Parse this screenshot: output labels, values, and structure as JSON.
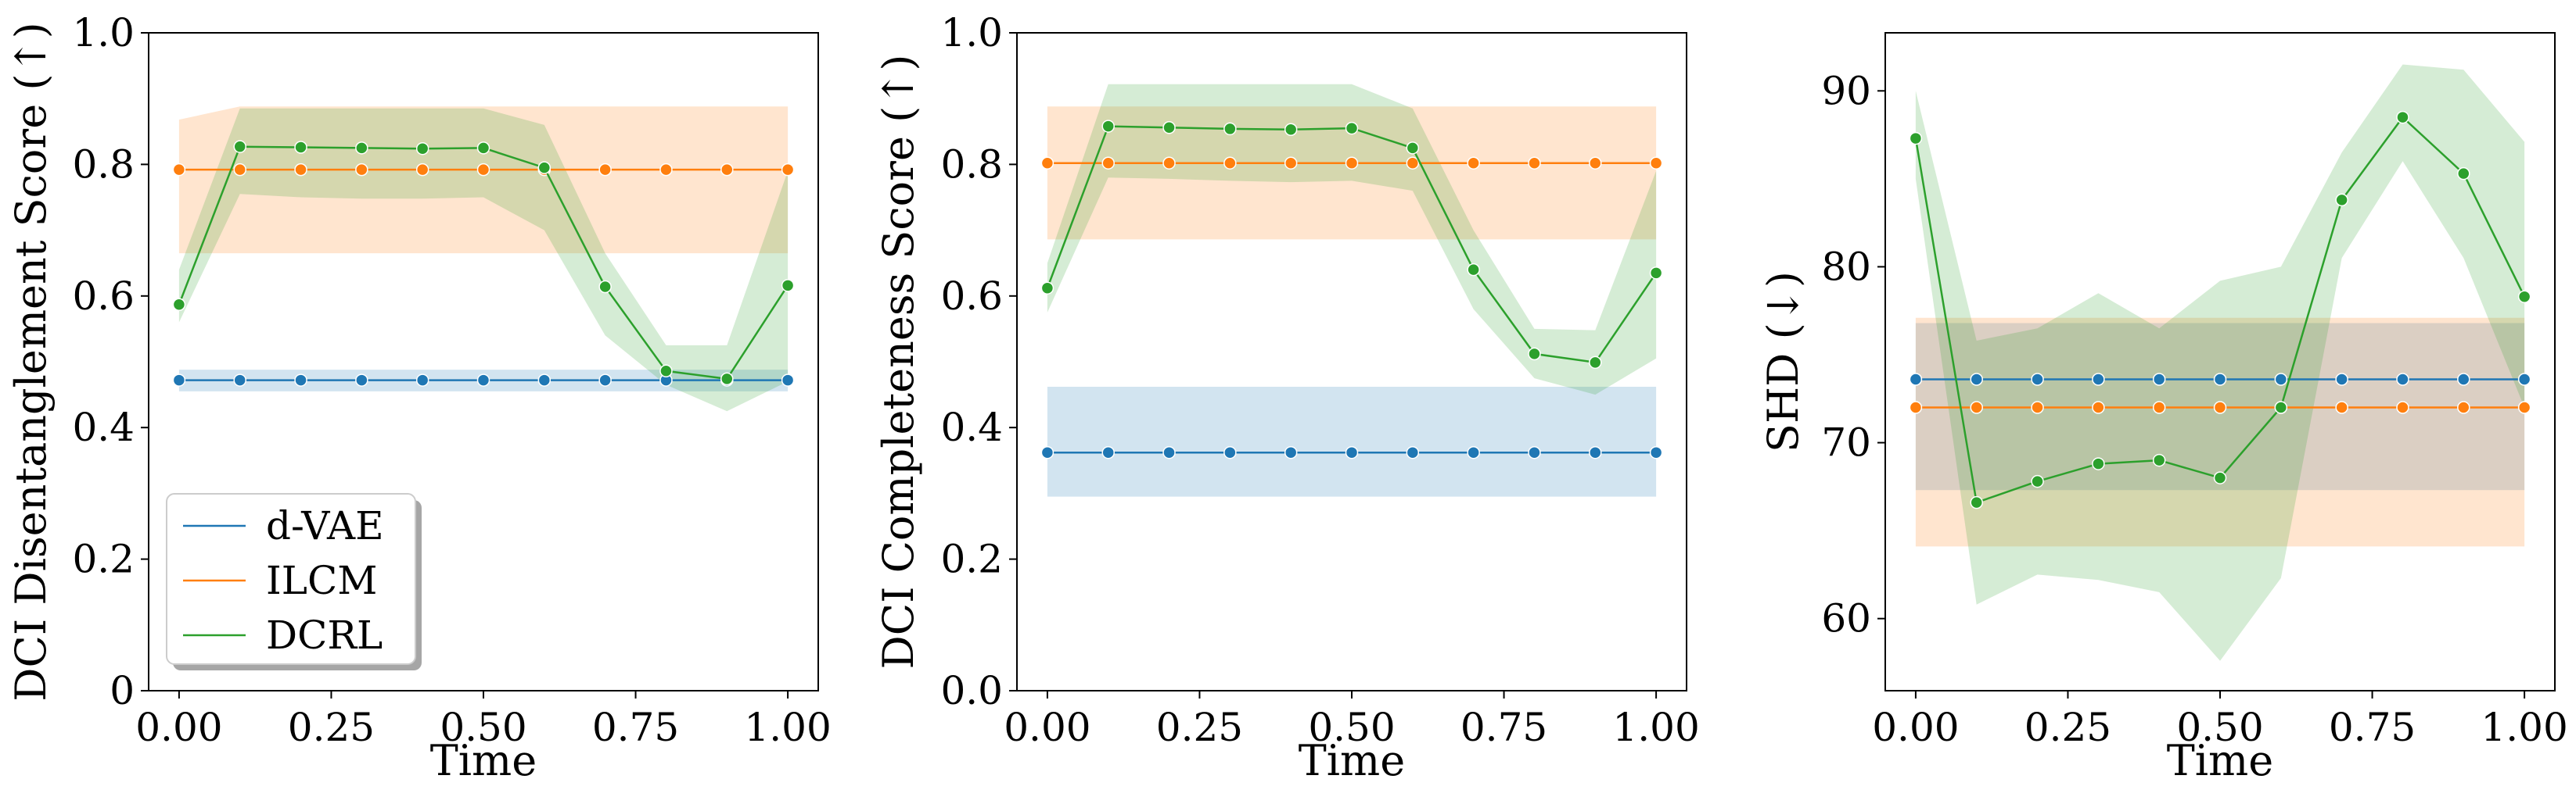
{
  "chart_data": [
    {
      "type": "line",
      "xlabel": "Time",
      "ylabel": "DCI Disentanglement Score (↑)",
      "xlim": [
        -0.05,
        1.05
      ],
      "ylim": [
        0.0,
        1.0
      ],
      "xticks": [
        0.0,
        0.25,
        0.5,
        0.75,
        1.0
      ],
      "xtick_labels": [
        "0.00",
        "0.25",
        "0.50",
        "0.75",
        "1.00"
      ],
      "yticks": [
        0.0,
        0.2,
        0.4,
        0.6,
        0.8,
        1.0
      ],
      "ytick_labels": [
        "0",
        "0.2",
        "0.4",
        "0.6",
        "0.8",
        "1.0"
      ],
      "x": [
        0.0,
        0.1,
        0.2,
        0.3,
        0.4,
        0.5,
        0.6,
        0.7,
        0.8,
        0.9,
        1.0
      ],
      "legend": {
        "position": "bottom-left",
        "entries": [
          "d-VAE",
          "ILCM",
          "DCRL"
        ]
      },
      "series": [
        {
          "name": "d-VAE",
          "color": "#1f77b4",
          "values": [
            0.472,
            0.472,
            0.472,
            0.472,
            0.472,
            0.472,
            0.472,
            0.472,
            0.472,
            0.472,
            0.472
          ],
          "lower": [
            0.455,
            0.455,
            0.455,
            0.455,
            0.455,
            0.455,
            0.455,
            0.455,
            0.455,
            0.455,
            0.455
          ],
          "upper": [
            0.488,
            0.488,
            0.488,
            0.488,
            0.488,
            0.488,
            0.488,
            0.488,
            0.488,
            0.488,
            0.488
          ]
        },
        {
          "name": "ILCM",
          "color": "#ff7f0e",
          "values": [
            0.792,
            0.792,
            0.792,
            0.792,
            0.792,
            0.792,
            0.792,
            0.792,
            0.792,
            0.792,
            0.792
          ],
          "lower": [
            0.665,
            0.665,
            0.665,
            0.665,
            0.665,
            0.665,
            0.665,
            0.665,
            0.665,
            0.665,
            0.665
          ],
          "upper": [
            0.868,
            0.888,
            0.888,
            0.888,
            0.888,
            0.888,
            0.888,
            0.888,
            0.888,
            0.888,
            0.888
          ]
        },
        {
          "name": "DCRL",
          "color": "#2ca02c",
          "values": [
            0.587,
            0.827,
            0.826,
            0.825,
            0.824,
            0.825,
            0.795,
            0.614,
            0.486,
            0.474,
            0.616
          ],
          "lower": [
            0.56,
            0.755,
            0.75,
            0.748,
            0.748,
            0.75,
            0.7,
            0.54,
            0.465,
            0.425,
            0.47
          ],
          "upper": [
            0.64,
            0.885,
            0.885,
            0.885,
            0.885,
            0.885,
            0.86,
            0.665,
            0.525,
            0.525,
            0.79
          ]
        }
      ]
    },
    {
      "type": "line",
      "xlabel": "Time",
      "ylabel": "DCI Completeness Score (↑)",
      "xlim": [
        -0.05,
        1.05
      ],
      "ylim": [
        0.0,
        1.0
      ],
      "xticks": [
        0.0,
        0.25,
        0.5,
        0.75,
        1.0
      ],
      "xtick_labels": [
        "0.00",
        "0.25",
        "0.50",
        "0.75",
        "1.00"
      ],
      "yticks": [
        0.0,
        0.2,
        0.4,
        0.6,
        0.8,
        1.0
      ],
      "ytick_labels": [
        "0.0",
        "0.2",
        "0.4",
        "0.6",
        "0.8",
        "1.0"
      ],
      "x": [
        0.0,
        0.1,
        0.2,
        0.3,
        0.4,
        0.5,
        0.6,
        0.7,
        0.8,
        0.9,
        1.0
      ],
      "series": [
        {
          "name": "d-VAE",
          "color": "#1f77b4",
          "values": [
            0.362,
            0.362,
            0.362,
            0.362,
            0.362,
            0.362,
            0.362,
            0.362,
            0.362,
            0.362,
            0.362
          ],
          "lower": [
            0.295,
            0.295,
            0.295,
            0.295,
            0.295,
            0.295,
            0.295,
            0.295,
            0.295,
            0.295,
            0.295
          ],
          "upper": [
            0.462,
            0.462,
            0.462,
            0.462,
            0.462,
            0.462,
            0.462,
            0.462,
            0.462,
            0.462,
            0.462
          ]
        },
        {
          "name": "ILCM",
          "color": "#ff7f0e",
          "values": [
            0.802,
            0.802,
            0.802,
            0.802,
            0.802,
            0.802,
            0.802,
            0.802,
            0.802,
            0.802,
            0.802
          ],
          "lower": [
            0.686,
            0.686,
            0.686,
            0.686,
            0.686,
            0.686,
            0.686,
            0.686,
            0.686,
            0.686,
            0.686
          ],
          "upper": [
            0.888,
            0.888,
            0.888,
            0.888,
            0.888,
            0.888,
            0.888,
            0.888,
            0.888,
            0.888,
            0.888
          ]
        },
        {
          "name": "DCRL",
          "color": "#2ca02c",
          "values": [
            0.612,
            0.858,
            0.856,
            0.854,
            0.853,
            0.855,
            0.825,
            0.64,
            0.512,
            0.499,
            0.635
          ],
          "lower": [
            0.575,
            0.78,
            0.778,
            0.775,
            0.773,
            0.775,
            0.76,
            0.58,
            0.475,
            0.45,
            0.505
          ],
          "upper": [
            0.65,
            0.922,
            0.922,
            0.922,
            0.922,
            0.922,
            0.885,
            0.7,
            0.55,
            0.548,
            0.79
          ]
        }
      ]
    },
    {
      "type": "line",
      "xlabel": "Time",
      "ylabel": "SHD (↓)",
      "xlim": [
        -0.05,
        1.05
      ],
      "ylim": [
        55.9,
        93.3
      ],
      "xticks": [
        0.0,
        0.25,
        0.5,
        0.75,
        1.0
      ],
      "xtick_labels": [
        "0.00",
        "0.25",
        "0.50",
        "0.75",
        "1.00"
      ],
      "yticks": [
        60,
        70,
        80,
        90
      ],
      "ytick_labels": [
        "60",
        "70",
        "80",
        "90"
      ],
      "x": [
        0.0,
        0.1,
        0.2,
        0.3,
        0.4,
        0.5,
        0.6,
        0.7,
        0.8,
        0.9,
        1.0
      ],
      "series": [
        {
          "name": "d-VAE",
          "color": "#1f77b4",
          "values": [
            73.6,
            73.6,
            73.6,
            73.6,
            73.6,
            73.6,
            73.6,
            73.6,
            73.6,
            73.6,
            73.6
          ],
          "lower": [
            67.3,
            67.3,
            67.3,
            67.3,
            67.3,
            67.3,
            67.3,
            67.3,
            67.3,
            67.3,
            67.3
          ],
          "upper": [
            76.8,
            76.8,
            76.8,
            76.8,
            76.8,
            76.8,
            76.8,
            76.8,
            76.8,
            76.8,
            76.8
          ]
        },
        {
          "name": "ILCM",
          "color": "#ff7f0e",
          "values": [
            72.0,
            72.0,
            72.0,
            72.0,
            72.0,
            72.0,
            72.0,
            72.0,
            72.0,
            72.0,
            72.0
          ],
          "lower": [
            64.1,
            64.1,
            64.1,
            64.1,
            64.1,
            64.1,
            64.1,
            64.1,
            64.1,
            64.1,
            64.1
          ],
          "upper": [
            77.1,
            77.1,
            77.1,
            77.1,
            77.1,
            77.1,
            77.1,
            77.1,
            77.1,
            77.1,
            77.1
          ]
        },
        {
          "name": "DCRL",
          "color": "#2ca02c",
          "values": [
            87.3,
            66.6,
            67.8,
            68.8,
            69.0,
            68.0,
            72.0,
            83.8,
            88.5,
            85.3,
            78.3
          ],
          "lower": [
            85.0,
            60.8,
            62.5,
            62.2,
            61.5,
            57.6,
            62.3,
            80.5,
            86.0,
            80.5,
            72.0
          ],
          "upper": [
            90.0,
            75.8,
            76.5,
            78.5,
            76.5,
            79.2,
            80.0,
            86.5,
            91.5,
            91.2,
            87.1
          ]
        }
      ]
    }
  ]
}
